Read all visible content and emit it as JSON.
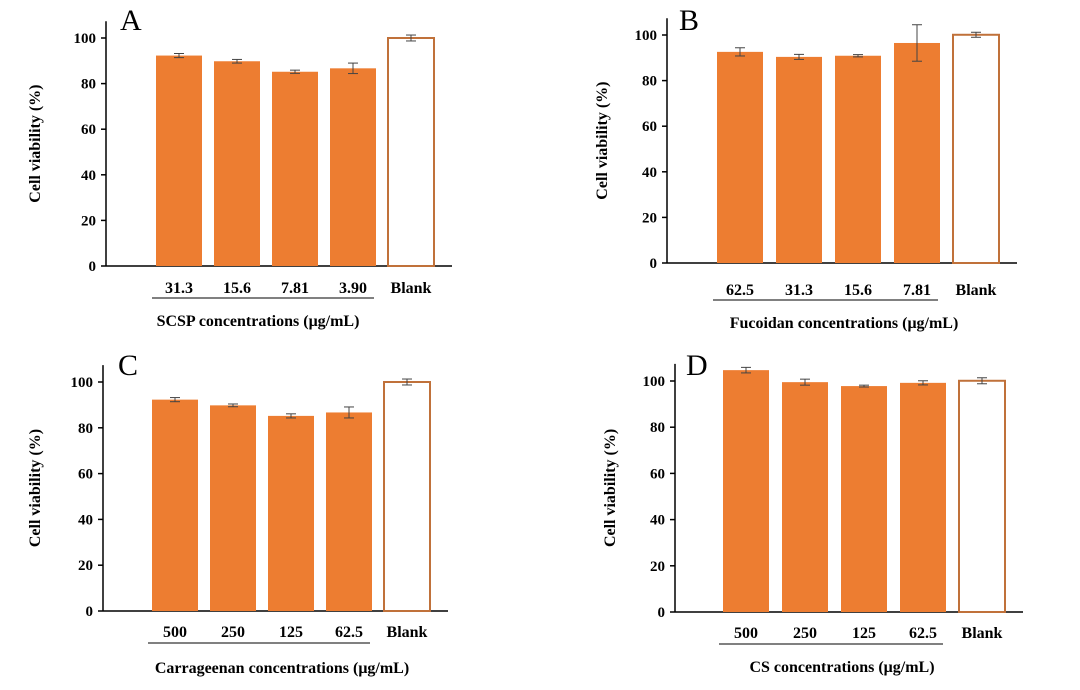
{
  "chart_data": [
    {
      "panel": "A",
      "type": "bar",
      "ylabel": "Cell viability (%)",
      "xlabel": "SCSP concentrations (μg/mL)",
      "categories": [
        "31.3",
        "15.6",
        "7.81",
        "3.90",
        "Blank"
      ],
      "values": [
        92.3,
        89.8,
        85.2,
        86.7,
        100.0
      ],
      "errors": [
        0.9,
        0.8,
        0.7,
        2.3,
        1.3
      ],
      "ylim": [
        0,
        110
      ],
      "yticks": [
        "0",
        "20",
        "40",
        "60",
        "80",
        "100"
      ],
      "colors": {
        "bar": "#ED7D31",
        "blank_fill": "#ffffff",
        "blank_stroke": "#C0713A"
      }
    },
    {
      "panel": "B",
      "type": "bar",
      "ylabel": "Cell viability (%)",
      "xlabel": "Fucoidan concentrations (μg/mL)",
      "categories": [
        "62.5",
        "31.3",
        "15.6",
        "7.81",
        "Blank"
      ],
      "values": [
        92.6,
        90.4,
        90.9,
        96.5,
        100.1
      ],
      "errors": [
        1.8,
        1.1,
        0.5,
        8.0,
        1.1
      ],
      "ylim": [
        0,
        110
      ],
      "yticks": [
        "0",
        "20",
        "40",
        "60",
        "80",
        "100"
      ],
      "colors": {
        "bar": "#ED7D31",
        "blank_fill": "#ffffff",
        "blank_stroke": "#C0713A"
      }
    },
    {
      "panel": "C",
      "type": "bar",
      "ylabel": "Cell viability (%)",
      "xlabel": "Carrageenan concentrations (μg/mL)",
      "categories": [
        "500",
        "250",
        "125",
        "62.5",
        "Blank"
      ],
      "values": [
        92.3,
        89.8,
        85.2,
        86.7,
        100.0
      ],
      "errors": [
        0.9,
        0.6,
        0.9,
        2.4,
        1.3
      ],
      "ylim": [
        0,
        110
      ],
      "yticks": [
        "0",
        "20",
        "40",
        "60",
        "80",
        "100"
      ],
      "colors": {
        "bar": "#ED7D31",
        "blank_fill": "#ffffff",
        "blank_stroke": "#C0713A"
      }
    },
    {
      "panel": "D",
      "type": "bar",
      "ylabel": "Cell viability (%)",
      "xlabel": "CS concentrations (μg/mL)",
      "categories": [
        "500",
        "250",
        "125",
        "62.5",
        "Blank"
      ],
      "values": [
        104.7,
        99.5,
        97.8,
        99.2,
        100.1
      ],
      "errors": [
        1.2,
        1.3,
        0.4,
        0.9,
        1.3
      ],
      "ylim": [
        0,
        110
      ],
      "yticks": [
        "0",
        "20",
        "40",
        "60",
        "80",
        "100"
      ],
      "colors": {
        "bar": "#ED7D31",
        "blank_fill": "#ffffff",
        "blank_stroke": "#C0713A"
      }
    }
  ]
}
